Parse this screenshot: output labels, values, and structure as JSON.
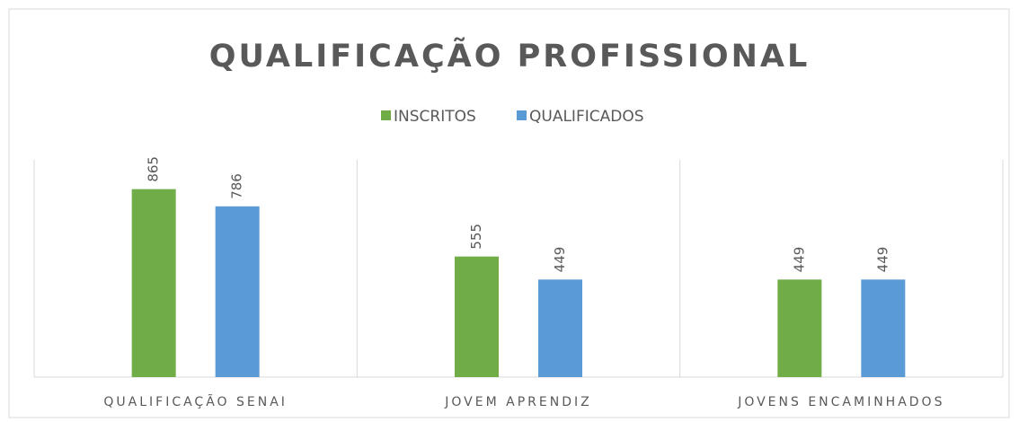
{
  "chart_data": {
    "type": "bar",
    "title": "QUALIFICAÇÃO PROFISSIONAL",
    "categories": [
      "QUALIFICAÇÃO SENAI",
      "JOVEM APRENDIZ",
      "JOVENS ENCAMINHADOS"
    ],
    "series": [
      {
        "name": "INSCRITOS",
        "color": "#70ad47",
        "values": [
          865,
          555,
          449
        ]
      },
      {
        "name": "QUALIFICADOS",
        "color": "#5b9bd5",
        "values": [
          786,
          449,
          449
        ]
      }
    ],
    "ylim": [
      0,
      1000
    ],
    "legend": "top"
  }
}
